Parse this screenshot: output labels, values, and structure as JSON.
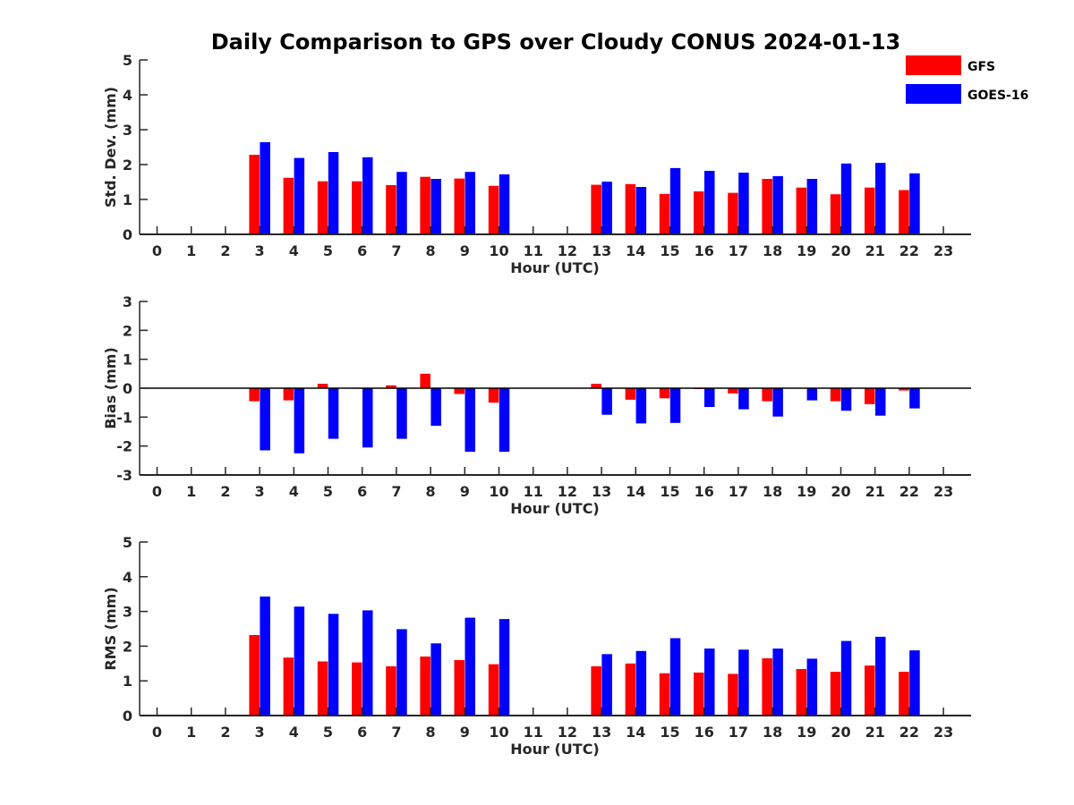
{
  "title": "Daily Comparison to GPS over Cloudy CONUS 2024-01-13",
  "legend": [
    {
      "name": "GFS",
      "color": "#ff0000"
    },
    {
      "name": "GOES-16",
      "color": "#0000ff"
    }
  ],
  "chart_data": [
    {
      "type": "bar",
      "ylabel": "Std. Dev. (mm)",
      "xlabel": "Hour (UTC)",
      "ylim": [
        0,
        5
      ],
      "yticks": [
        0,
        1,
        2,
        3,
        4,
        5
      ],
      "x": [
        0,
        1,
        2,
        3,
        4,
        5,
        6,
        7,
        8,
        9,
        10,
        11,
        12,
        13,
        14,
        15,
        16,
        17,
        18,
        19,
        20,
        21,
        22,
        23
      ],
      "series": [
        {
          "name": "GFS",
          "color": "#ff0000",
          "values": [
            null,
            null,
            null,
            2.28,
            1.62,
            1.52,
            1.52,
            1.41,
            1.65,
            1.6,
            1.39,
            null,
            null,
            1.42,
            1.44,
            1.16,
            1.23,
            1.19,
            1.59,
            1.34,
            1.15,
            1.34,
            1.27,
            null
          ]
        },
        {
          "name": "GOES-16",
          "color": "#0000ff",
          "values": [
            null,
            null,
            null,
            2.64,
            2.19,
            2.36,
            2.21,
            1.79,
            1.59,
            1.79,
            1.72,
            null,
            null,
            1.51,
            1.36,
            1.9,
            1.82,
            1.77,
            1.67,
            1.59,
            2.03,
            2.05,
            1.75,
            null
          ]
        }
      ]
    },
    {
      "type": "bar",
      "ylabel": "Bias (mm)",
      "xlabel": "Hour (UTC)",
      "ylim": [
        -3,
        3
      ],
      "yticks": [
        -3,
        -2,
        -1,
        0,
        1,
        2,
        3
      ],
      "x": [
        0,
        1,
        2,
        3,
        4,
        5,
        6,
        7,
        8,
        9,
        10,
        11,
        12,
        13,
        14,
        15,
        16,
        17,
        18,
        19,
        20,
        21,
        22,
        23
      ],
      "series": [
        {
          "name": "GFS",
          "color": "#ff0000",
          "values": [
            null,
            null,
            null,
            -0.45,
            -0.42,
            0.15,
            -0.02,
            0.1,
            0.5,
            -0.2,
            -0.5,
            null,
            null,
            0.15,
            -0.4,
            -0.35,
            -0.03,
            -0.18,
            -0.45,
            0.0,
            -0.45,
            -0.55,
            -0.08,
            null
          ]
        },
        {
          "name": "GOES-16",
          "color": "#0000ff",
          "values": [
            null,
            null,
            null,
            -2.15,
            -2.25,
            -1.75,
            -2.05,
            -1.75,
            -1.3,
            -2.2,
            -2.2,
            null,
            null,
            -0.92,
            -1.22,
            -1.2,
            -0.65,
            -0.73,
            -0.98,
            -0.42,
            -0.78,
            -0.95,
            -0.7,
            null
          ]
        }
      ]
    },
    {
      "type": "bar",
      "ylabel": "RMS (mm)",
      "xlabel": "Hour (UTC)",
      "ylim": [
        0,
        5
      ],
      "yticks": [
        0,
        1,
        2,
        3,
        4,
        5
      ],
      "x": [
        0,
        1,
        2,
        3,
        4,
        5,
        6,
        7,
        8,
        9,
        10,
        11,
        12,
        13,
        14,
        15,
        16,
        17,
        18,
        19,
        20,
        21,
        22,
        23
      ],
      "series": [
        {
          "name": "GFS",
          "color": "#ff0000",
          "values": [
            null,
            null,
            null,
            2.32,
            1.67,
            1.56,
            1.53,
            1.42,
            1.7,
            1.6,
            1.48,
            null,
            null,
            1.42,
            1.5,
            1.22,
            1.24,
            1.2,
            1.65,
            1.34,
            1.26,
            1.44,
            1.26,
            null
          ]
        },
        {
          "name": "GOES-16",
          "color": "#0000ff",
          "values": [
            null,
            null,
            null,
            3.43,
            3.14,
            2.93,
            3.03,
            2.49,
            2.08,
            2.82,
            2.78,
            null,
            null,
            1.77,
            1.86,
            2.23,
            1.93,
            1.9,
            1.93,
            1.64,
            2.15,
            2.27,
            1.88,
            null
          ]
        }
      ]
    }
  ]
}
